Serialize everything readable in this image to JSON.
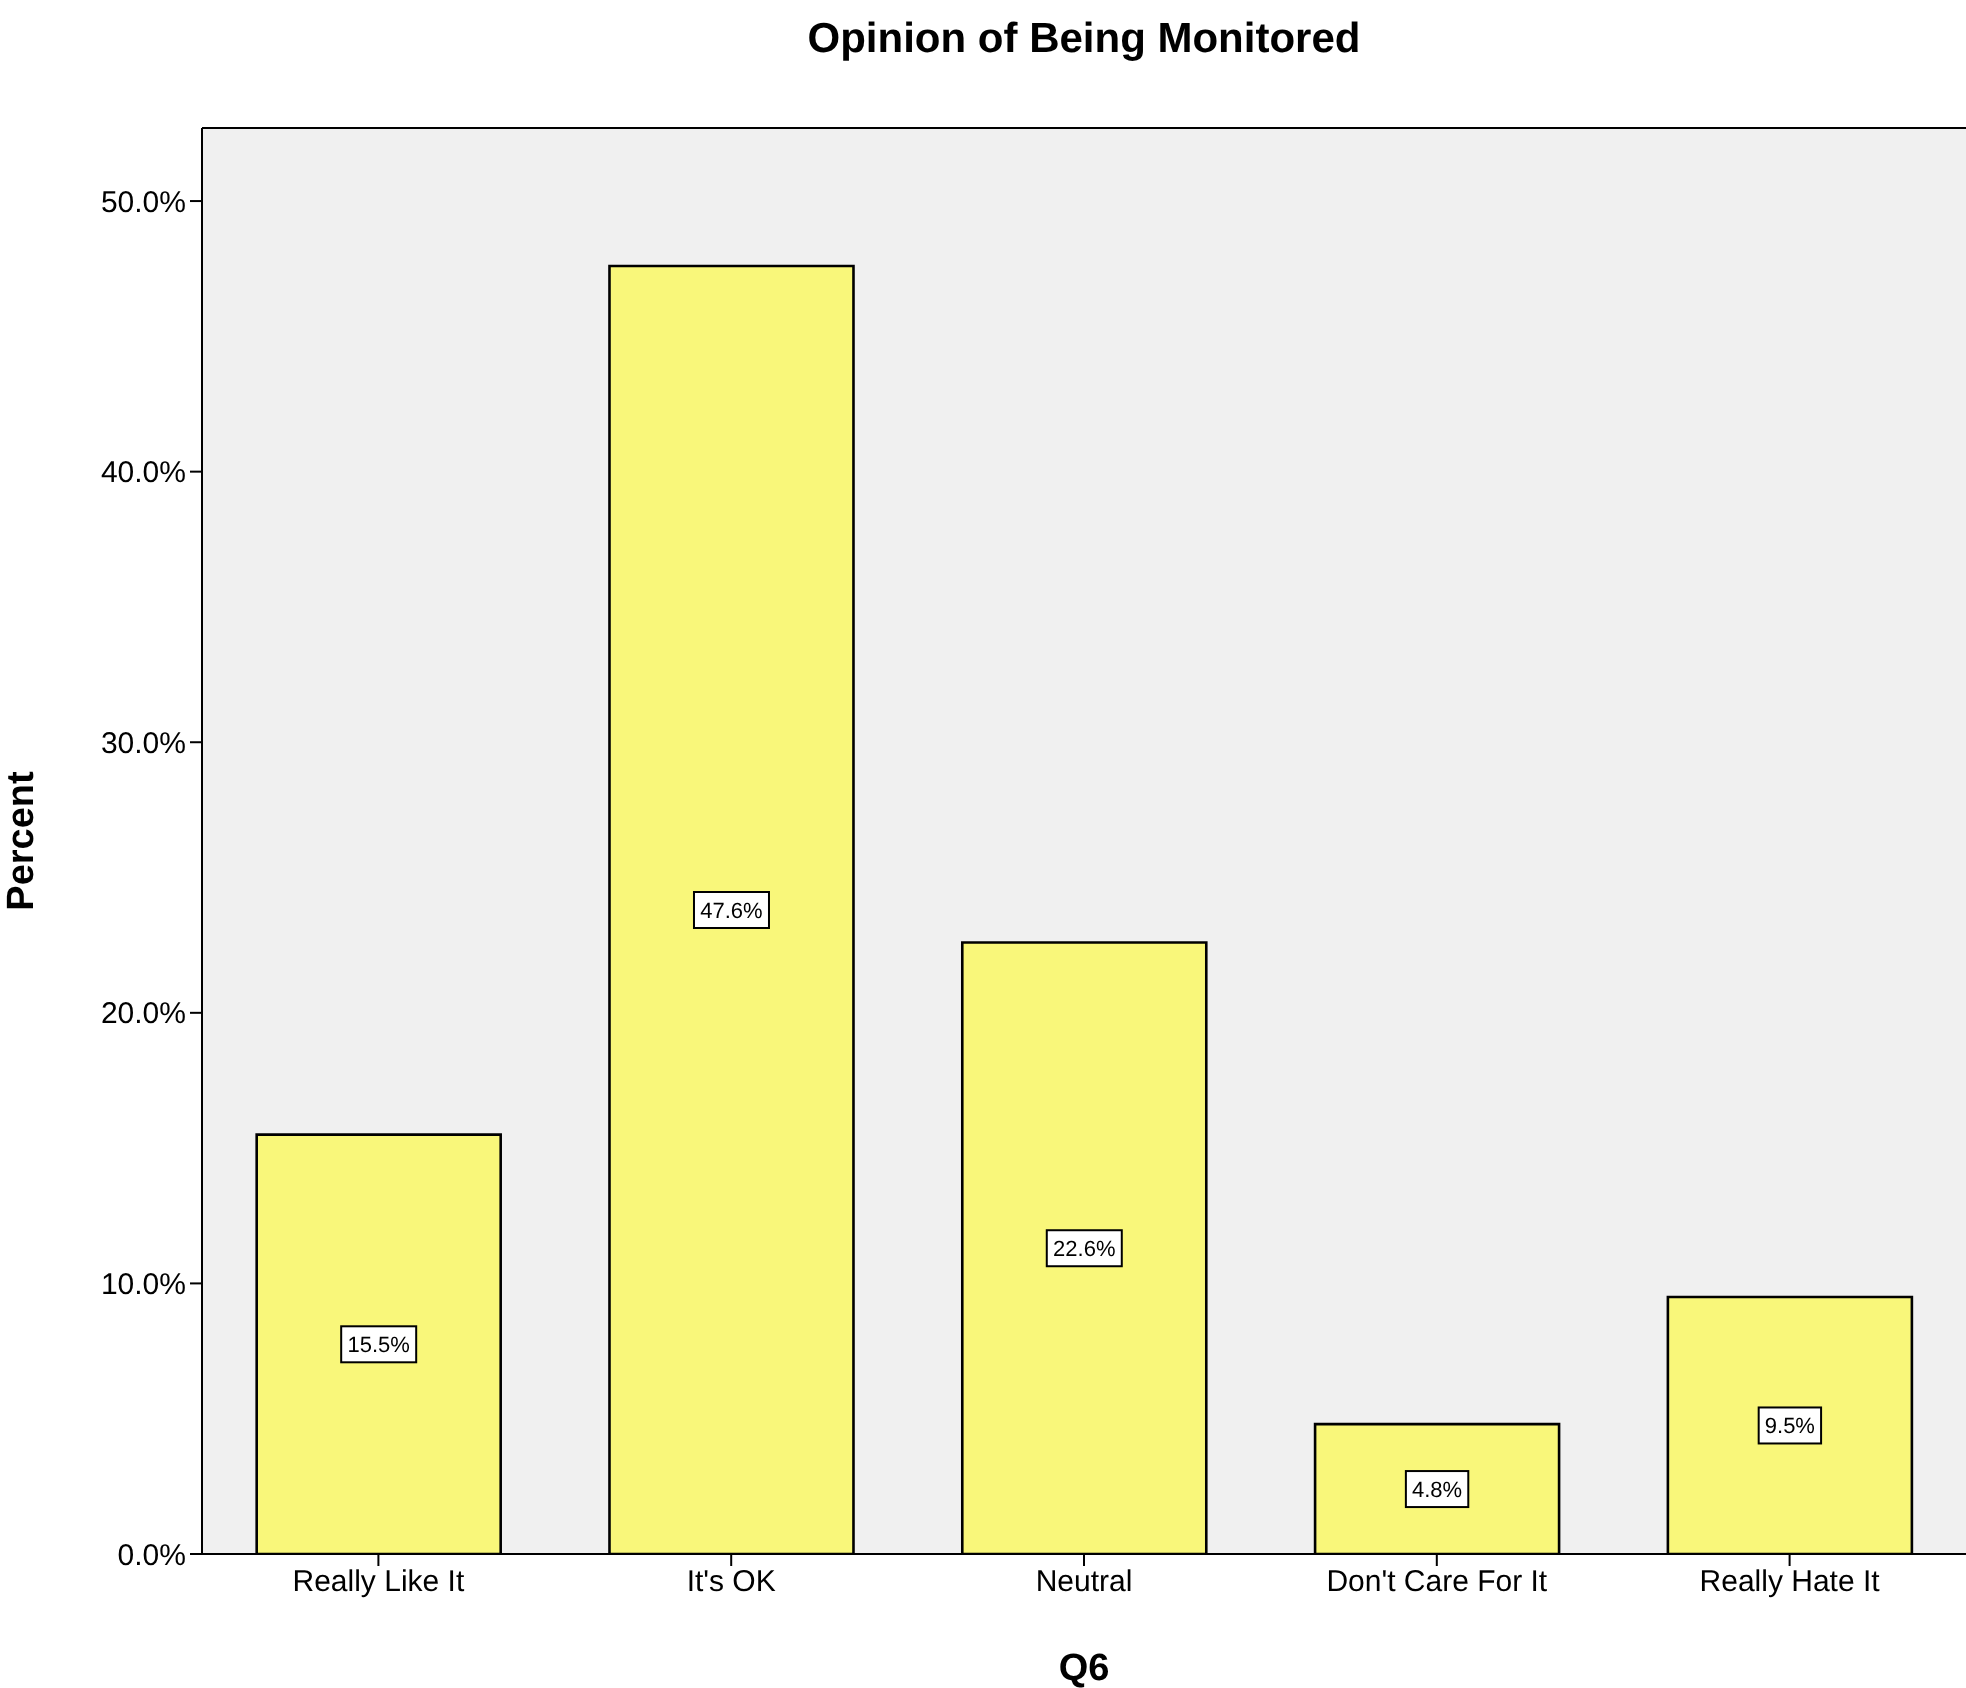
{
  "chart_data": {
    "type": "bar",
    "title": "Opinion of Being Monitored",
    "xlabel": "Q6",
    "ylabel": "Percent",
    "categories": [
      "Really Like It",
      "It's OK",
      "Neutral",
      "Don't Care For It",
      "Really Hate It"
    ],
    "values": [
      15.5,
      47.6,
      22.6,
      4.8,
      9.5
    ],
    "value_labels": [
      "15.5%",
      "47.6%",
      "22.6%",
      "4.8%",
      "9.5%"
    ],
    "color": "#f9f77a",
    "ylim": [
      0,
      52.7
    ],
    "yticks": [
      {
        "value": 0,
        "label": "0.0%"
      },
      {
        "value": 10,
        "label": "10.0%"
      },
      {
        "value": 20,
        "label": "20.0%"
      },
      {
        "value": 30,
        "label": "30.0%"
      },
      {
        "value": 40,
        "label": "40.0%"
      },
      {
        "value": 50,
        "label": "50.0%"
      }
    ]
  }
}
